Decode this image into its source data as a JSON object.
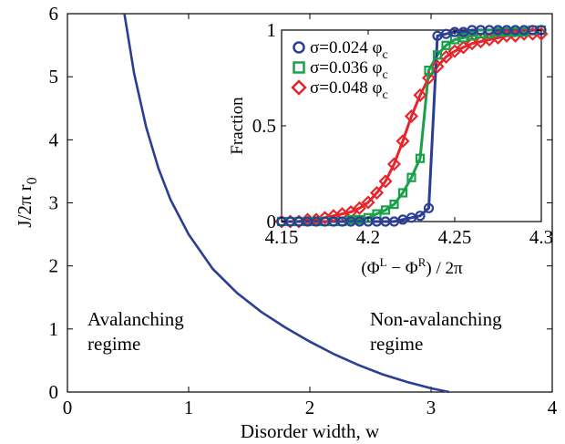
{
  "chart_data": [
    {
      "type": "line",
      "xlabel": "Disorder width, w",
      "ylabel": "J/2π r",
      "ylabel_sub": "0",
      "xlim": [
        0,
        4
      ],
      "ylim": [
        0,
        6
      ],
      "xticks": [
        0,
        1,
        2,
        3,
        4
      ],
      "yticks": [
        0,
        1,
        2,
        3,
        4,
        5,
        6
      ],
      "grid": false,
      "series": [
        {
          "color": "#2c3e94",
          "x": [
            0.47,
            0.55,
            0.65,
            0.75,
            0.85,
            1.0,
            1.2,
            1.4,
            1.6,
            1.8,
            2.0,
            2.2,
            2.4,
            2.6,
            2.8,
            3.0,
            3.15
          ],
          "y": [
            6.0,
            5.05,
            4.2,
            3.55,
            3.05,
            2.5,
            1.95,
            1.57,
            1.27,
            1.02,
            0.8,
            0.6,
            0.43,
            0.28,
            0.16,
            0.06,
            0.0
          ]
        }
      ],
      "annotations": [
        {
          "lines": [
            "Avalanching",
            "regime"
          ],
          "x": 0.13,
          "y": 0.85
        },
        {
          "lines": [
            "Non-avalanching",
            "regime"
          ],
          "x": 3.02,
          "y": 0.85
        }
      ]
    },
    {
      "type": "scatter",
      "role": "inset",
      "xlabel_main": "(Φ",
      "xlabel_sup1": "L",
      "xlabel_mid": " − Φ",
      "xlabel_sup2": "R",
      "xlabel_end": ") / 2π",
      "ylabel": "Fraction",
      "xlim": [
        4.15,
        4.3
      ],
      "ylim": [
        0,
        1
      ],
      "xticks": [
        "4.15",
        "4.2",
        "4.25",
        "4.3"
      ],
      "yticks": [
        "0",
        "0.5",
        "1"
      ],
      "legend_position": "top-left",
      "series": [
        {
          "label": "σ=0.024 φ",
          "label_sub": "c",
          "marker": "circle",
          "color": "#2c3e94",
          "x": [
            4.15,
            4.155,
            4.16,
            4.165,
            4.17,
            4.175,
            4.18,
            4.185,
            4.19,
            4.195,
            4.2,
            4.205,
            4.21,
            4.215,
            4.22,
            4.225,
            4.23,
            4.235,
            4.24,
            4.245,
            4.25,
            4.255,
            4.26,
            4.265,
            4.27,
            4.275,
            4.28,
            4.285,
            4.29,
            4.295,
            4.3
          ],
          "y": [
            0,
            0,
            0,
            0,
            0,
            0,
            0,
            0,
            0,
            0,
            0,
            0,
            0,
            0,
            0.01,
            0.02,
            0.03,
            0.07,
            0.97,
            0.98,
            0.99,
            0.99,
            1,
            1,
            1,
            1,
            1,
            1,
            1,
            1,
            1
          ]
        },
        {
          "label": "σ=0.036 φ",
          "label_sub": "c",
          "marker": "square",
          "color": "#1aa048",
          "x": [
            4.15,
            4.155,
            4.16,
            4.165,
            4.17,
            4.175,
            4.18,
            4.185,
            4.19,
            4.195,
            4.2,
            4.205,
            4.21,
            4.215,
            4.22,
            4.225,
            4.23,
            4.235,
            4.24,
            4.245,
            4.25,
            4.255,
            4.26,
            4.265,
            4.27,
            4.275,
            4.28,
            4.285,
            4.29,
            4.295,
            4.3
          ],
          "y": [
            0,
            0,
            0,
            0,
            0,
            0,
            0,
            0,
            0.01,
            0.01,
            0.02,
            0.04,
            0.06,
            0.09,
            0.15,
            0.23,
            0.33,
            0.79,
            0.87,
            0.92,
            0.95,
            0.96,
            0.97,
            0.98,
            0.98,
            0.99,
            0.99,
            0.99,
            0.99,
            1,
            1
          ]
        },
        {
          "label": "σ=0.048 φ",
          "label_sub": "c",
          "marker": "diamond",
          "color": "#e8242b",
          "x": [
            4.15,
            4.155,
            4.16,
            4.165,
            4.17,
            4.175,
            4.18,
            4.185,
            4.19,
            4.195,
            4.2,
            4.205,
            4.21,
            4.215,
            4.22,
            4.225,
            4.23,
            4.235,
            4.24,
            4.245,
            4.25,
            4.255,
            4.26,
            4.265,
            4.27,
            4.275,
            4.28,
            4.285,
            4.29,
            4.295,
            4.3
          ],
          "y": [
            0,
            0,
            0,
            0.01,
            0.01,
            0.02,
            0.03,
            0.04,
            0.05,
            0.07,
            0.1,
            0.15,
            0.21,
            0.3,
            0.42,
            0.55,
            0.66,
            0.75,
            0.81,
            0.86,
            0.89,
            0.91,
            0.93,
            0.94,
            0.95,
            0.96,
            0.97,
            0.97,
            0.98,
            0.98,
            0.98
          ]
        }
      ]
    }
  ]
}
